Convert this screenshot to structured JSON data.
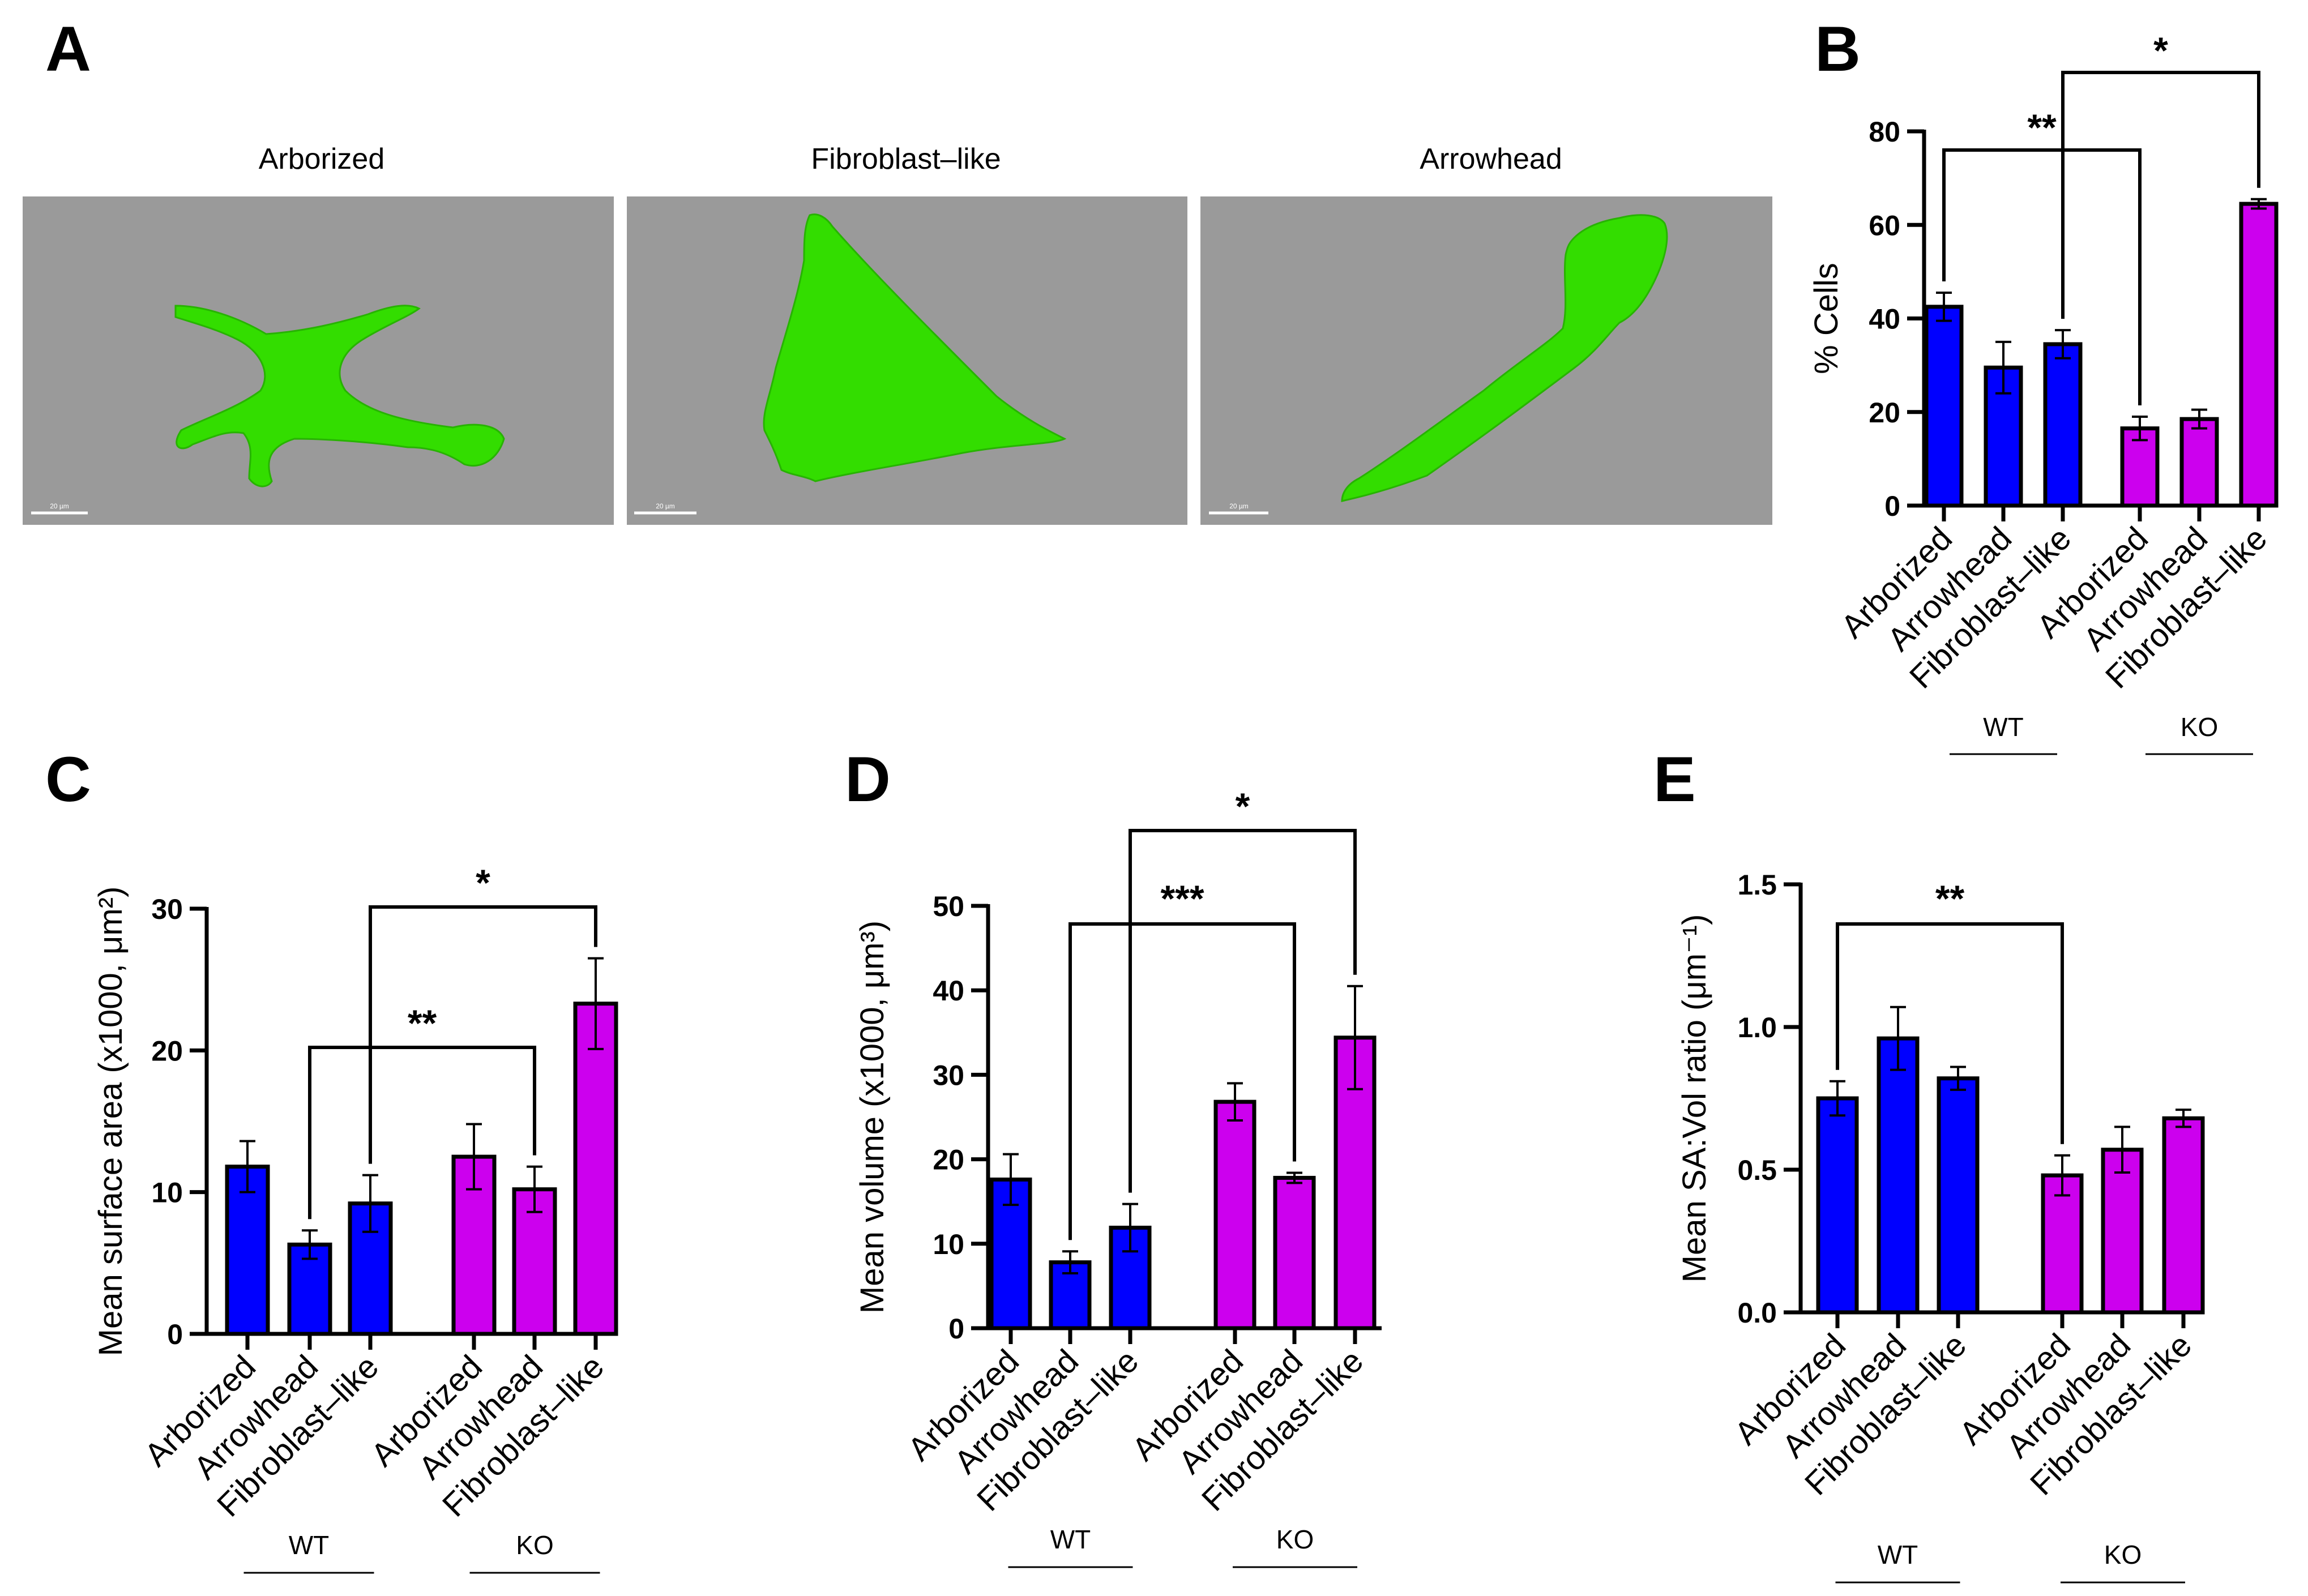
{
  "panel_a": {
    "label": "A",
    "images": [
      {
        "title": "Arborized",
        "scale_bar": "20 µm"
      },
      {
        "title": "Fibroblast–like",
        "scale_bar": "20 µm"
      },
      {
        "title": "Arrowhead",
        "scale_bar": "20 µm"
      }
    ]
  },
  "chart_data": [
    {
      "panel": "B",
      "type": "bar",
      "ylabel": "% Cells",
      "ylim": [
        0,
        80
      ],
      "yticks": [
        0,
        20,
        40,
        60,
        80
      ],
      "ytick_labels": [
        "0",
        "20",
        "40",
        "60",
        "80"
      ],
      "categories": [
        "Arborized",
        "Arrowhead",
        "Fibroblast–like",
        "Arborized",
        "Arrowhead",
        "Fibroblast–like"
      ],
      "groups": [
        {
          "name": "WT",
          "color": "#0000ff"
        },
        {
          "name": "KO",
          "color": "#cc00ee"
        }
      ],
      "values": [
        42.5,
        29.5,
        34.5,
        16.5,
        18.5,
        64.5
      ],
      "errors": [
        3,
        5.5,
        3,
        2.5,
        2,
        1
      ],
      "significance": [
        {
          "from": 0,
          "to": 3,
          "label": "**"
        },
        {
          "from": 2,
          "to": 5,
          "label": "*"
        }
      ]
    },
    {
      "panel": "C",
      "type": "bar",
      "ylabel": "Mean surface area (x1000, μm²)",
      "ylim": [
        0,
        30
      ],
      "yticks": [
        0,
        10,
        20,
        30
      ],
      "ytick_labels": [
        "0",
        "10",
        "20",
        "30"
      ],
      "categories": [
        "Arborized",
        "Arrowhead",
        "Fibroblast–like",
        "Arborized",
        "Arrowhead",
        "Fibroblast–like"
      ],
      "groups": [
        {
          "name": "WT",
          "color": "#0000ff"
        },
        {
          "name": "KO",
          "color": "#cc00ee"
        }
      ],
      "values": [
        11.8,
        6.3,
        9.2,
        12.5,
        10.2,
        23.3
      ],
      "errors": [
        1.8,
        1.0,
        2.0,
        2.3,
        1.6,
        3.2
      ],
      "significance": [
        {
          "from": 1,
          "to": 4,
          "label": "**"
        },
        {
          "from": 2,
          "to": 5,
          "label": "*"
        }
      ]
    },
    {
      "panel": "D",
      "type": "bar",
      "ylabel": "Mean volume (x1000, μm³)",
      "ylim": [
        0,
        50
      ],
      "yticks": [
        0,
        10,
        20,
        30,
        40,
        50
      ],
      "ytick_labels": [
        "0",
        "10",
        "20",
        "30",
        "40",
        "50"
      ],
      "categories": [
        "Arborized",
        "Arrowhead",
        "Fibroblast–like",
        "Arborized",
        "Arrowhead",
        "Fibroblast–like"
      ],
      "groups": [
        {
          "name": "WT",
          "color": "#0000ff"
        },
        {
          "name": "KO",
          "color": "#cc00ee"
        }
      ],
      "values": [
        17.6,
        7.8,
        11.9,
        26.8,
        17.8,
        34.4
      ],
      "errors": [
        3.0,
        1.3,
        2.8,
        2.2,
        0.6,
        6.1
      ],
      "significance": [
        {
          "from": 1,
          "to": 4,
          "label": "***"
        },
        {
          "from": 2,
          "to": 5,
          "label": "*"
        }
      ]
    },
    {
      "panel": "E",
      "type": "bar",
      "ylabel": "Mean SA:Vol ratio (μm⁻¹)",
      "ylim": [
        0,
        1.5
      ],
      "yticks": [
        0,
        0.5,
        1.0,
        1.5
      ],
      "ytick_labels": [
        "0.0",
        "0.5",
        "1.0",
        "1.5"
      ],
      "categories": [
        "Arborized",
        "Arrowhead",
        "Fibroblast–like",
        "Arborized",
        "Arrowhead",
        "Fibroblast–like"
      ],
      "groups": [
        {
          "name": "WT",
          "color": "#0000ff"
        },
        {
          "name": "KO",
          "color": "#cc00ee"
        }
      ],
      "values": [
        0.75,
        0.96,
        0.82,
        0.48,
        0.57,
        0.68
      ],
      "errors": [
        0.06,
        0.11,
        0.04,
        0.07,
        0.08,
        0.03
      ],
      "significance": [
        {
          "from": 0,
          "to": 3,
          "label": "**"
        }
      ]
    }
  ]
}
